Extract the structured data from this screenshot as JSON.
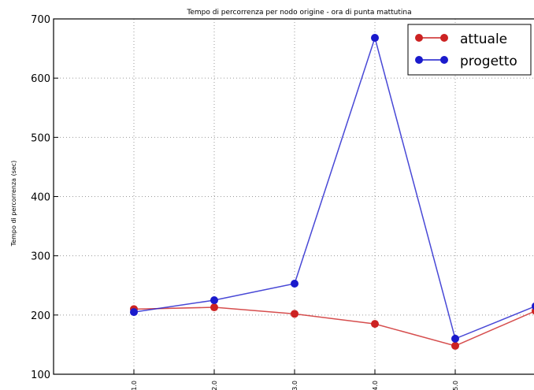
{
  "chart_data": {
    "type": "line",
    "title": "Tempo di percorrenza per nodo origine - ora di punta mattutina",
    "xlabel": "",
    "ylabel": "Tempo di percorrenza (sec)",
    "x": [
      1.0,
      2.0,
      3.0,
      4.0,
      5.0,
      6.0
    ],
    "x_tick_labels": [
      "1.0",
      "2.0",
      "3.0",
      "4.0",
      "5.0"
    ],
    "xlim": [
      0.0,
      6.0
    ],
    "ylim": [
      100,
      700
    ],
    "y_ticks": [
      100,
      200,
      300,
      400,
      500,
      600,
      700
    ],
    "grid": true,
    "legend_position": "top-right",
    "series": [
      {
        "name": "attuale",
        "color": "#cc2222",
        "values": [
          210,
          213,
          202,
          185,
          148,
          207
        ]
      },
      {
        "name": "progetto",
        "color": "#1a1acc",
        "values": [
          205,
          225,
          253,
          668,
          160,
          215
        ]
      }
    ]
  }
}
